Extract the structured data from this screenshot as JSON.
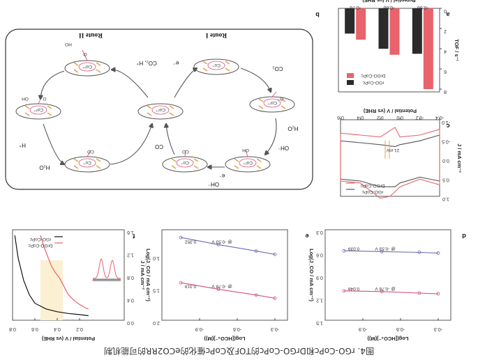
{
  "caption": "图4. rGO-CoPc和DrGO-CoPc的TOF及CoPc催化的eCO2RR的可能机制",
  "colors": {
    "rgo": "#2b2b2b",
    "drgo": "#e8636b",
    "blue": "#6a6ab8",
    "red": "#d2527a",
    "orange": "#e8a14a",
    "purple": "#8a2ec0"
  },
  "panel_letters": {
    "a": "a",
    "b": "b",
    "c": "c",
    "d": "d",
    "e": "e",
    "f": "f"
  },
  "mechanism": {
    "route_i": "Route I",
    "route_ii": "Route II",
    "center": "Co²⁺",
    "reduced": "Co⁺",
    "e_minus": "e⁻",
    "co2": "CO₂",
    "co2_h": "CO₂, H⁺",
    "h_plus": "H⁺",
    "h2o": "H₂O",
    "oh_minus": "OH⁻",
    "co": "CO",
    "oh_group": "OH",
    "ho_group": "HO",
    "o_minus": "O⁻",
    "o_label": "O",
    "co_label": "CO",
    "copc_core": "Co²⁺",
    "co_plus": "Co⁺",
    "co3_plus": "Co³⁺"
  },
  "chart_data": [
    {
      "panel": "a",
      "type": "bar",
      "ylabel": "TOF / s⁻¹",
      "xlabel": "Potential / V (vs RHE)",
      "categories": [
        "-0.98",
        "-0.88",
        "-0.78"
      ],
      "ylim": [
        0,
        8
      ],
      "yticks": [
        "0",
        "2",
        "4",
        "6",
        "8"
      ],
      "series": [
        {
          "name": "rGO-CoPc",
          "values": [
            4.5,
            4.0,
            2.5
          ]
        },
        {
          "name": "DrGO-CoPc",
          "values": [
            8.0,
            4.6,
            3.1
          ]
        }
      ],
      "legend": "top-right"
    },
    {
      "panel": "c",
      "type": "line",
      "ylabel": "J / mA cm⁻²",
      "xlabel": "Potential / V (vs RHE)",
      "xlim": [
        -0.4,
        0.6
      ],
      "ylim": [
        -1.0,
        1.0
      ],
      "xticks": [
        "-0.4",
        "-0.2",
        "0.0",
        "0.2",
        "0.4",
        "0.6"
      ],
      "yticks": [
        "-1.0",
        "-0.5",
        "0.0",
        "0.5",
        "1.0"
      ],
      "series": [
        {
          "name": "rGO-CoPc",
          "x": [
            -0.4,
            -0.2,
            0.0,
            0.05,
            0.2,
            0.4,
            0.6,
            0.6,
            0.4,
            0.2,
            0.05,
            0.0,
            -0.2,
            -0.4
          ],
          "y": [
            -0.6,
            -0.45,
            -0.35,
            -0.3,
            -0.35,
            -0.4,
            -0.45,
            0.55,
            0.6,
            0.75,
            0.75,
            0.65,
            0.5,
            0.6
          ]
        },
        {
          "name": "DrGO-CoPc",
          "x": [
            -0.4,
            -0.2,
            0.0,
            0.05,
            0.2,
            0.4,
            0.6,
            0.6,
            0.4,
            0.2,
            0.1,
            0.0,
            -0.2,
            -0.4
          ],
          "y": [
            -0.75,
            -0.6,
            -0.55,
            -0.8,
            -0.55,
            -0.6,
            -0.65,
            0.6,
            0.65,
            1.05,
            1.0,
            0.75,
            0.55,
            0.7
          ]
        }
      ],
      "annotation": "21 mV",
      "legend": "top-right"
    },
    {
      "panel": "d",
      "type": "scatter",
      "ylabel": "Log(J_CO / mA cm⁻²)",
      "xlabel": "Log([HCO₃⁻](M))",
      "xlim": [
        -1.2,
        -0.2
      ],
      "ylim": [
        0.3,
        1.5
      ],
      "xticks": [
        "-0.3",
        "-0.6",
        "-0.9"
      ],
      "yticks": [
        "0.3",
        "0.6",
        "0.9",
        "1.2",
        "1.5"
      ],
      "series": [
        {
          "name": "@ -0.78 V",
          "slope_label": "0.048",
          "x": [
            -1.05,
            -0.75,
            -0.45,
            -0.3
          ],
          "y": [
            1.11,
            1.12,
            1.14,
            1.15
          ]
        },
        {
          "name": "@ -0.53 V",
          "slope_label": "0.039",
          "x": [
            -1.05,
            -0.75,
            -0.45,
            -0.3
          ],
          "y": [
            0.58,
            0.59,
            0.6,
            0.61
          ]
        }
      ]
    },
    {
      "panel": "e",
      "type": "scatter",
      "ylabel": "Log(J_CO / mA cm⁻²)",
      "xlabel": "Log([HCO₃⁻](M))",
      "xlim": [
        -1.2,
        -0.2
      ],
      "ylim": [
        0.6,
        2.0
      ],
      "xticks": [
        "-0.3",
        "-0.6",
        "-0.9"
      ],
      "yticks": [
        "1.0",
        "1.5",
        "2.0"
      ],
      "series": [
        {
          "name": "@ -0.78 V",
          "slope_label": "0.319",
          "x": [
            -1.05,
            -0.75,
            -0.45,
            -0.3
          ],
          "y": [
            1.42,
            1.52,
            1.61,
            1.66
          ]
        },
        {
          "name": "@ -0.53 V",
          "slope_label": "0.352",
          "x": [
            -1.05,
            -0.75,
            -0.45,
            -0.3
          ],
          "y": [
            0.72,
            0.83,
            0.93,
            0.98
          ]
        }
      ]
    },
    {
      "panel": "f",
      "type": "line",
      "ylabel": "J / mA cm⁻²",
      "xlabel": "Potential / V (vs RHE)",
      "xlim": [
        -0.2,
        0.8
      ],
      "ylim": [
        0.0,
        1.6
      ],
      "xticks": [
        "0.8",
        "0.6",
        "0.4",
        "0.2"
      ],
      "yticks": [
        "0.0",
        "0.4",
        "0.8",
        "1.2",
        "1.6"
      ],
      "series": [
        {
          "name": "rGO-CoPc",
          "x": [
            0.78,
            0.75,
            0.7,
            0.65,
            0.6,
            0.5,
            0.4,
            0.3,
            0.2,
            0.12
          ],
          "y": [
            1.5,
            1.1,
            0.7,
            0.45,
            0.3,
            0.2,
            0.15,
            0.12,
            0.1,
            0.08
          ]
        },
        {
          "name": "DrGO-CoPc",
          "x": [
            0.55,
            0.52,
            0.48,
            0.45,
            0.42,
            0.38,
            0.34,
            0.3,
            0.25,
            0.2,
            0.15,
            0.12
          ],
          "y": [
            1.5,
            1.3,
            1.1,
            0.95,
            0.85,
            0.75,
            0.6,
            0.45,
            0.35,
            0.28,
            0.22,
            0.2
          ]
        }
      ],
      "highlight": [
        0.35,
        0.55
      ],
      "legend": "top-right"
    }
  ]
}
